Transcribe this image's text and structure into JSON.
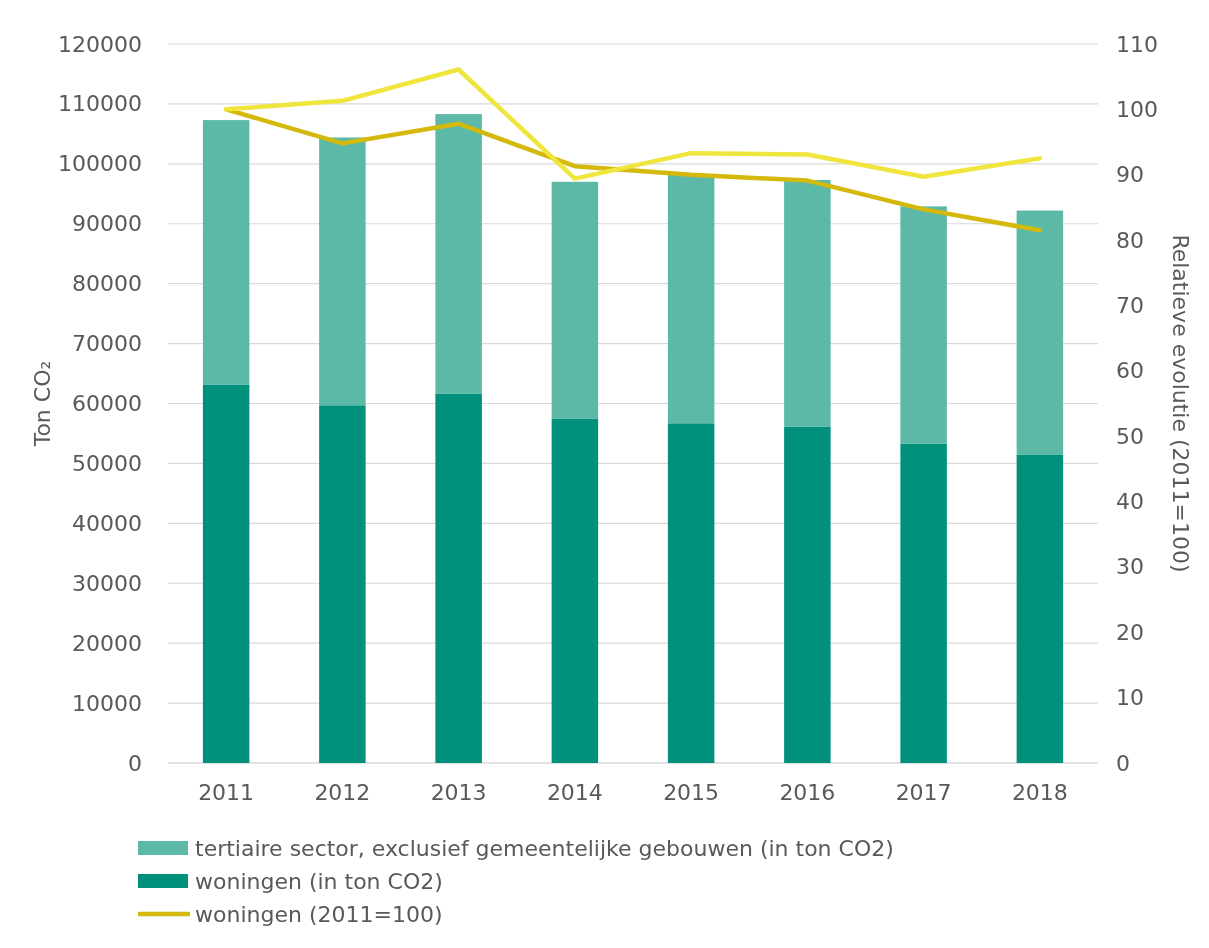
{
  "chart_data": {
    "type": "bar",
    "stacked": true,
    "categories": [
      "2011",
      "2012",
      "2013",
      "2014",
      "2015",
      "2016",
      "2017",
      "2018"
    ],
    "ylabel": "Ton CO₂",
    "y2label": "Relatieve evolutie (2011=100)",
    "ylim": [
      0,
      120000
    ],
    "yticks": [
      0,
      10000,
      20000,
      30000,
      40000,
      50000,
      60000,
      70000,
      80000,
      90000,
      100000,
      110000,
      120000
    ],
    "y2lim": [
      0,
      110
    ],
    "y2ticks": [
      0,
      10,
      20,
      30,
      40,
      50,
      60,
      70,
      80,
      90,
      100,
      110
    ],
    "grid": "y",
    "legend": "bottom",
    "series": [
      {
        "name": "woningen (in ton CO2)",
        "color": "#00907c",
        "values": [
          63100,
          59700,
          61600,
          57500,
          56700,
          56100,
          53300,
          51500
        ]
      },
      {
        "name": "tertiaire sector, exclusief gemeentelijke gebouwen (in ton CO2)",
        "color": "#5cb9a7",
        "values": [
          44200,
          44700,
          46700,
          39500,
          41600,
          41200,
          39600,
          40700
        ]
      },
      {
        "type": "line",
        "axis": "y2",
        "name": "woningen (2011=100)",
        "color": "#d4b90c",
        "values": [
          100,
          94.8,
          97.8,
          91.3,
          90.0,
          89.1,
          84.7,
          81.5
        ]
      },
      {
        "type": "line",
        "axis": "y2",
        "color": "#efe53c",
        "values": [
          100,
          101.3,
          106.1,
          89.4,
          93.3,
          93.1,
          89.7,
          92.5
        ]
      }
    ]
  }
}
